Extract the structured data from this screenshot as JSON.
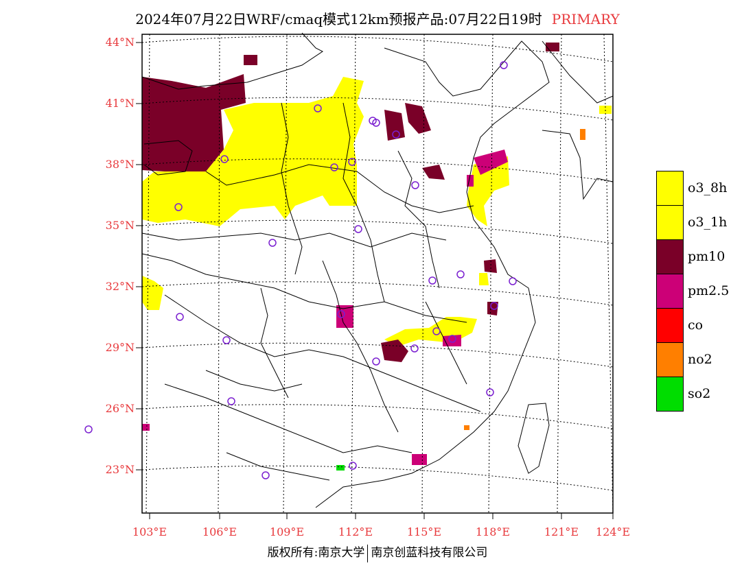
{
  "title": {
    "main": "2024年07月22日WRF/cmaq模式12km预报产品:07月22日19时",
    "tag": "PRIMARY"
  },
  "colors": {
    "o3_8h": "#ffff00",
    "o3_1h": "#ffff00",
    "pm10": "#7a0028",
    "pm25": "#cc0077",
    "co": "#ff0000",
    "no2": "#ff7f00",
    "so2": "#00dd00",
    "stations": "#7a1fd0",
    "axis_labels": "#e8393c"
  },
  "axes": {
    "lat_labels": [
      "44°N",
      "41°N",
      "38°N",
      "35°N",
      "32°N",
      "29°N",
      "26°N",
      "23°N"
    ],
    "lon_labels": [
      "103°E",
      "106°E",
      "109°E",
      "112°E",
      "115°E",
      "118°E",
      "121°E",
      "124°E"
    ]
  },
  "legend": [
    {
      "label": "o3_8h",
      "color": "#ffff00"
    },
    {
      "label": "o3_1h",
      "color": "#ffff00"
    },
    {
      "label": "pm10",
      "color": "#7a0028"
    },
    {
      "label": "pm2.5",
      "color": "#cc0077"
    },
    {
      "label": "co",
      "color": "#ff0000"
    },
    {
      "label": "no2",
      "color": "#ff7f00"
    },
    {
      "label": "so2",
      "color": "#00dd00"
    }
  ],
  "footer": {
    "left": "版权所有:南京大学",
    "right": "南京创蓝科技有限公司"
  }
}
